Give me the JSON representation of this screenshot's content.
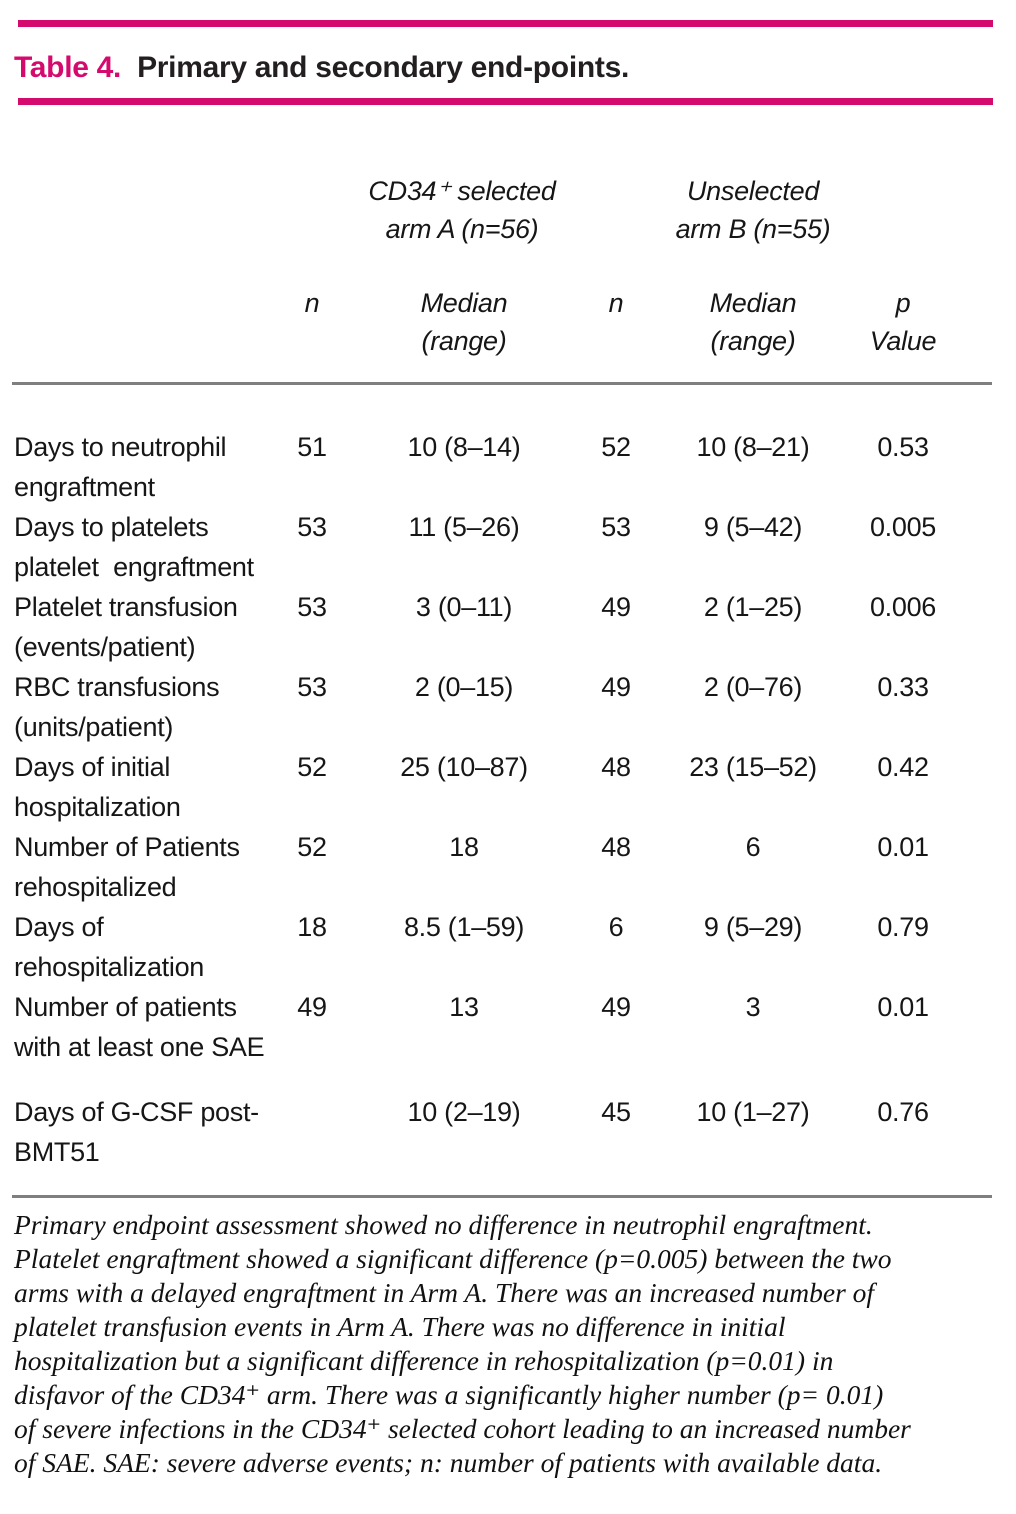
{
  "colors": {
    "accent": "#d40a6e",
    "rule": "#7f7f7f"
  },
  "title": {
    "label": "Table 4.",
    "text": "Primary and secondary end-points."
  },
  "header": {
    "group_a": "CD34⁺ selected\narm A (n=56)",
    "group_b": "Unselected\narm B (n=55)",
    "col_n_a": "n",
    "col_median_a": "Median\n(range)",
    "col_n_b": "n",
    "col_median_b": "Median\n(range)",
    "col_p": "p\nValue"
  },
  "rows": [
    {
      "label": "Days to neutrophil\nengraftment",
      "n_a": "51",
      "median_a": "10 (8–14)",
      "n_b": "52",
      "median_b": "10 (8–21)",
      "p": "0.53"
    },
    {
      "label": "Days to platelets\nplatelet  engraftment",
      "n_a": "53",
      "median_a": "11 (5–26)",
      "n_b": "53",
      "median_b": "9 (5–42)",
      "p": "0.005"
    },
    {
      "label": "Platelet transfusion\n(events/patient)",
      "n_a": "53",
      "median_a": "3 (0–11)",
      "n_b": "49",
      "median_b": "2 (1–25)",
      "p": "0.006"
    },
    {
      "label": "RBC transfusions\n(units/patient)",
      "n_a": "53",
      "median_a": "2 (0–15)",
      "n_b": "49",
      "median_b": "2 (0–76)",
      "p": "0.33"
    },
    {
      "label": "Days of initial\nhospitalization",
      "n_a": "52",
      "median_a": "25 (10–87)",
      "n_b": "48",
      "median_b": "23 (15–52)",
      "p": "0.42"
    },
    {
      "label": "Number of Patients\nrehospitalized",
      "n_a": "52",
      "median_a": "18",
      "n_b": "48",
      "median_b": "6",
      "p": "0.01"
    },
    {
      "label": "Days of\nrehospitalization",
      "n_a": "18",
      "median_a": "8.5 (1–59)",
      "n_b": "6",
      "median_b": "9 (5–29)",
      "p": "0.79"
    },
    {
      "label": "Number of patients\nwith at least one SAE",
      "n_a": "49",
      "median_a": "13",
      "n_b": "49",
      "median_b": "3",
      "p": "0.01"
    },
    {
      "label": "Days of G-CSF post-BMT51",
      "median_a": "10 (2–19)",
      "n_b": "45",
      "median_b": "10 (1–27)",
      "p": "0.76"
    }
  ],
  "footnote": {
    "lines": [
      "Primary endpoint assessment showed no difference in neutrophil engraftment.",
      "Platelet engraftment showed a significant difference (p=0.005) between the two",
      "arms with a delayed engraftment in Arm A. There was an increased number of",
      "platelet transfusion events in Arm A. There was no difference in initial",
      "hospitalization but a significant difference in rehospitalization (p=0.01) in",
      "disfavor of the CD34⁺ arm.  There was a significantly higher number (p= 0.01)",
      "of severe infections in the CD34⁺ selected cohort leading to an increased number",
      "of SAE.  SAE: severe adverse events; n: number of patients with available data."
    ]
  }
}
